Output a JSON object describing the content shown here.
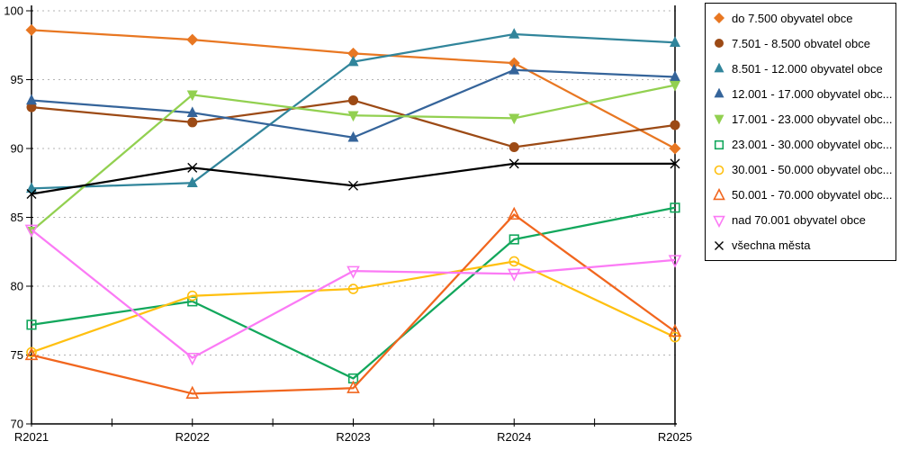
{
  "chart_data": {
    "type": "line",
    "title": "",
    "categories": [
      "R2021",
      "R2022",
      "R2023",
      "R2024",
      "R2025"
    ],
    "y_axis": {
      "min": 70,
      "max": 100,
      "tick_step": 5,
      "tick_labels": [
        "70",
        "75",
        "80",
        "85",
        "90",
        "95",
        "100"
      ]
    },
    "grid": {
      "horizontal": true,
      "style": "dashed",
      "color": "#b3b3b3"
    },
    "legend": {
      "position": "right",
      "border_color": "#000000",
      "background": "#ffffff"
    },
    "axis_color": "#000000",
    "series": [
      {
        "label": "do 7.500 obyvatel obce",
        "marker": "diamond",
        "marker_style": "filled",
        "color": "#e87722",
        "values": [
          98.6,
          97.9,
          96.9,
          96.2,
          90.0
        ]
      },
      {
        "label": "7.501 - 8.500 obvatel obce",
        "marker": "circle",
        "marker_style": "filled",
        "color": "#9c4a15",
        "values": [
          93.0,
          91.9,
          93.5,
          90.1,
          91.7
        ]
      },
      {
        "label": "8.501 - 12.000 obyvatel obce",
        "marker": "triangle-up",
        "marker_style": "filled",
        "color": "#31859b",
        "values": [
          87.1,
          87.5,
          96.3,
          98.3,
          97.7
        ]
      },
      {
        "label": "12.001 - 17.000 obyvatel obc...",
        "marker": "triangle-up",
        "marker_style": "filled",
        "color": "#35649a",
        "values": [
          93.5,
          92.6,
          90.8,
          95.7,
          95.2
        ]
      },
      {
        "label": "17.001 - 23.000 obyvatel obc...",
        "marker": "triangle-down",
        "marker_style": "filled",
        "color": "#92d050",
        "values": [
          84.0,
          93.9,
          92.4,
          92.2,
          94.6
        ]
      },
      {
        "label": "23.001 - 30.000 obyvatel obc...",
        "marker": "square",
        "marker_style": "open",
        "color": "#12a75c",
        "values": [
          77.2,
          78.9,
          73.3,
          83.4,
          85.7
        ]
      },
      {
        "label": "30.001 - 50.000 obyvatel obc...",
        "marker": "circle",
        "marker_style": "open",
        "color": "#ffc010",
        "values": [
          75.2,
          79.3,
          79.8,
          81.8,
          76.3
        ]
      },
      {
        "label": "50.001 - 70.000 obyvatel obc...",
        "marker": "triangle-up",
        "marker_style": "open",
        "color": "#f1661e",
        "values": [
          75.0,
          72.2,
          72.6,
          85.2,
          76.7
        ]
      },
      {
        "label": "nad 70.001 obyvatel obce",
        "marker": "triangle-down",
        "marker_style": "open",
        "color": "#fb7af5",
        "values": [
          84.1,
          74.8,
          81.1,
          80.9,
          81.9
        ]
      },
      {
        "label": "všechna města",
        "marker": "x",
        "marker_style": "line",
        "color": "#000000",
        "values": [
          86.7,
          88.6,
          87.3,
          88.9,
          88.9
        ]
      }
    ]
  }
}
